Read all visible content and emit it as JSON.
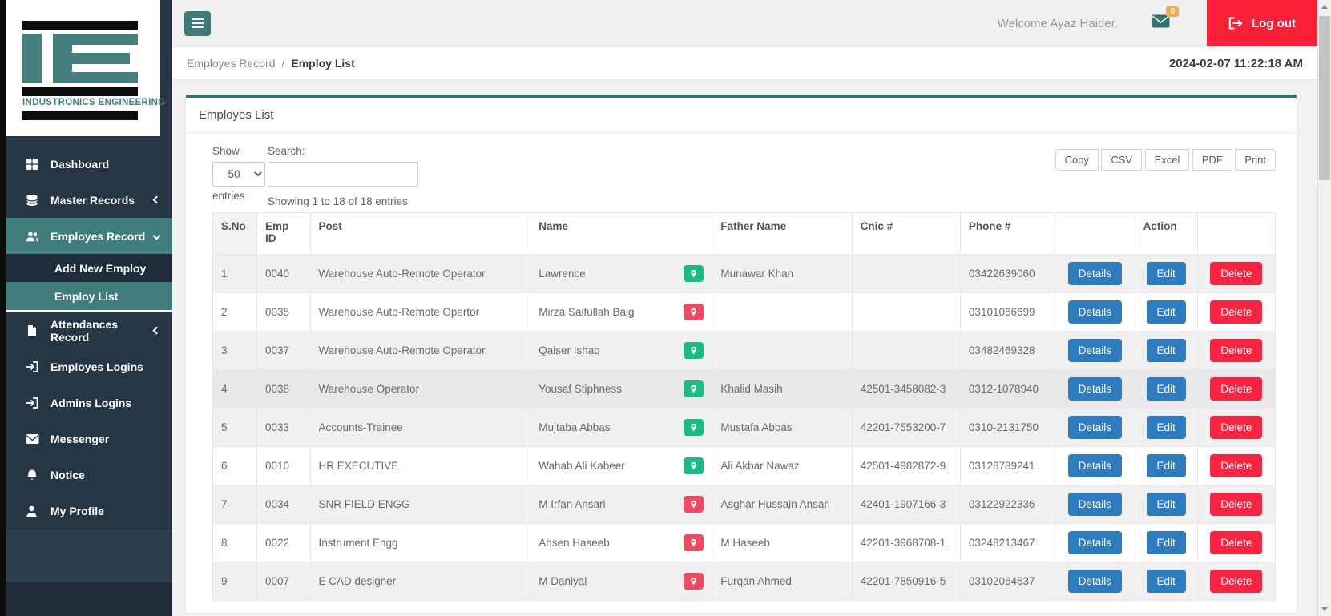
{
  "topbar": {
    "welcome": "Welcome Ayaz Haider.",
    "mail_badge": "0",
    "logout_label": "Log out"
  },
  "breadcrumb": {
    "section": "Employes Record",
    "separator": "/",
    "page": "Employ List",
    "datetime": "2024-02-07 11:22:18 AM"
  },
  "sidebar": {
    "logo_company": "INDUSTRONICS ENGINEERING",
    "items": [
      {
        "label": "Dashboard",
        "icon": "dashboard-icon"
      },
      {
        "label": "Master Records",
        "icon": "database-icon",
        "chevron": "left"
      },
      {
        "label": "Employes Record",
        "icon": "users-icon",
        "chevron": "down",
        "active": true
      },
      {
        "label": "Attendances Record",
        "icon": "file-icon",
        "chevron": "left"
      },
      {
        "label": "Employes Logins",
        "icon": "sign-in-icon"
      },
      {
        "label": "Admins Logins",
        "icon": "sign-in-icon"
      },
      {
        "label": "Messenger",
        "icon": "envelope-icon"
      },
      {
        "label": "Notice",
        "icon": "bell-icon"
      },
      {
        "label": "My Profile",
        "icon": "user-icon"
      }
    ],
    "submenu": [
      {
        "label": "Add New Employ"
      },
      {
        "label": "Employ List",
        "active": true
      }
    ]
  },
  "panel": {
    "title": "Employes List",
    "length_label_before": "Show",
    "length_value": "50",
    "length_label_after": "entries",
    "search_label": "Search:",
    "info": "Showing 1 to 18 of 18 entries",
    "export_buttons": [
      "Copy",
      "CSV",
      "Excel",
      "PDF",
      "Print"
    ]
  },
  "table": {
    "columns": [
      "S.No",
      "Emp ID",
      "Post",
      "Name",
      "Father Name",
      "Cnic #",
      "Phone #",
      "",
      "Action",
      ""
    ],
    "action_labels": {
      "details": "Details",
      "edit": "Edit",
      "delete": "Delete"
    },
    "rows": [
      {
        "sno": "1",
        "emp_id": "0040",
        "post": "Warehouse Auto-Remote Operator",
        "name": "Lawrence",
        "location_pin": "green",
        "father_name": "Munawar Khan",
        "cnic": "",
        "phone": "03422639060"
      },
      {
        "sno": "2",
        "emp_id": "0035",
        "post": "Warehouse Auto-Remote Opertor",
        "name": "Mirza Saifullah Baig",
        "location_pin": "red",
        "father_name": "",
        "cnic": "",
        "phone": "03101066699"
      },
      {
        "sno": "3",
        "emp_id": "0037",
        "post": "Warehouse Auto-Remote Operator",
        "name": "Qaiser Ishaq",
        "location_pin": "green",
        "father_name": "",
        "cnic": "",
        "phone": "03482469328"
      },
      {
        "sno": "4",
        "emp_id": "0038",
        "post": "Warehouse Operator",
        "name": "Yousaf Stiphness",
        "location_pin": "green",
        "father_name": "Khalid Masih",
        "cnic": "42501-3458082-3",
        "phone": "0312-1078940",
        "highlighted": true
      },
      {
        "sno": "5",
        "emp_id": "0033",
        "post": "Accounts-Trainee",
        "name": "Mujtaba Abbas",
        "location_pin": "green",
        "father_name": "Mustafa Abbas",
        "cnic": "42201-7553200-7",
        "phone": "0310-2131750"
      },
      {
        "sno": "6",
        "emp_id": "0010",
        "post": "HR EXECUTIVE",
        "name": "Wahab Ali Kabeer",
        "location_pin": "green",
        "father_name": "Ali Akbar Nawaz",
        "cnic": "42501-4982872-9",
        "phone": "03128789241"
      },
      {
        "sno": "7",
        "emp_id": "0034",
        "post": "SNR FIELD ENGG",
        "name": "M Irfan Ansari",
        "location_pin": "red",
        "father_name": "Asghar Hussain Ansari",
        "cnic": "42401-1907166-3",
        "phone": "03122922336"
      },
      {
        "sno": "8",
        "emp_id": "0022",
        "post": "Instrument Engg",
        "name": "Ahsen Haseeb",
        "location_pin": "red",
        "father_name": "M Haseeb",
        "cnic": "42201-3968708-1",
        "phone": "03248213467"
      },
      {
        "sno": "9",
        "emp_id": "0007",
        "post": "E CAD designer",
        "name": "M Daniyal",
        "location_pin": "red",
        "father_name": "Furqan Ahmed",
        "cnic": "42201-7850916-5",
        "phone": "03102064537"
      }
    ]
  },
  "colors": {
    "teal_accent": "#3d7a78",
    "card_top_border": "#2f7472",
    "sidebar_bg": "#263645",
    "submenu_bg": "#1f2d3a",
    "active_item_bg": "#3f7e7c",
    "logout_red": "#f92038",
    "delete_red": "#f92442",
    "button_blue": "#2e7cbe",
    "pin_green": "#17bd85",
    "pin_red": "#f1495f",
    "badge_orange": "#f0ad4e"
  }
}
